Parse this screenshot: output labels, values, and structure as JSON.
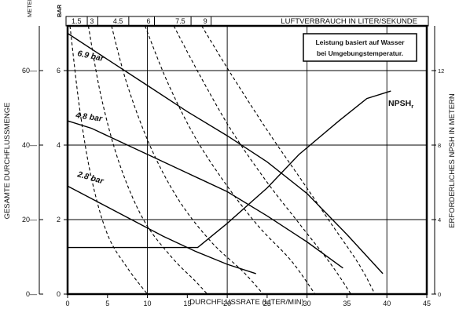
{
  "chart_data": {
    "type": "line",
    "note_lines": [
      "Leistung basiert auf Wasser",
      "bei Umgebungstemperatur."
    ],
    "x_axis": {
      "label": "DURCHFLUSSRATE (LITER/MIN)",
      "range": [
        0,
        45
      ],
      "ticks": [
        "0",
        "5",
        "10",
        "15",
        "20",
        "25",
        "30",
        "35",
        "40",
        "45"
      ]
    },
    "y_axis_left_bar": {
      "unit": "BAR",
      "range": [
        0,
        7.2
      ],
      "ticks": [
        "0",
        "2",
        "4",
        "6"
      ]
    },
    "y_axis_left_meter": {
      "unit": "METER",
      "label": "GESAMTE DURCHFLUSSMENGE",
      "range": [
        0,
        72
      ],
      "ticks": [
        "0",
        "20",
        "40",
        "60"
      ]
    },
    "y_axis_right": {
      "label": "ERFORDERLICHES NPSH IN METERN",
      "range": [
        0,
        14.4
      ],
      "ticks": [
        "0",
        "4",
        "8",
        "12"
      ]
    },
    "top_axis": {
      "label": "LUFTVERBRAUCH IN LITER/SEKUNDE",
      "ticks": [
        {
          "label": "1.5",
          "x": 0.3
        },
        {
          "label": "3",
          "x": 2.6
        },
        {
          "label": "4.5",
          "x": 5.5
        },
        {
          "label": "6",
          "x": 9.7
        },
        {
          "label": "7.5",
          "x": 13.3
        },
        {
          "label": "9",
          "x": 16.8
        }
      ]
    },
    "grid": true,
    "pressure_curves": [
      {
        "label": "6.9 bar",
        "points": [
          [
            0,
            7.0
          ],
          [
            5,
            6.3
          ],
          [
            10,
            5.6
          ],
          [
            15,
            4.9
          ],
          [
            20,
            4.25
          ],
          [
            25,
            3.55
          ],
          [
            30,
            2.7
          ],
          [
            35,
            1.6
          ],
          [
            39.5,
            0.55
          ]
        ]
      },
      {
        "label": "4.8 bar",
        "points": [
          [
            0,
            4.65
          ],
          [
            3,
            4.45
          ],
          [
            6.5,
            4.1
          ],
          [
            10,
            3.75
          ],
          [
            15,
            3.25
          ],
          [
            20,
            2.75
          ],
          [
            25,
            2.1
          ],
          [
            30,
            1.4
          ],
          [
            34.5,
            0.7
          ]
        ]
      },
      {
        "label": "2.8 bar",
        "points": [
          [
            0,
            2.9
          ],
          [
            4,
            2.45
          ],
          [
            8,
            2.0
          ],
          [
            12,
            1.55
          ],
          [
            16,
            1.15
          ],
          [
            20,
            0.8
          ],
          [
            23.6,
            0.55
          ]
        ]
      }
    ],
    "npsh_curve": {
      "label": "NPSH",
      "label_subscript": "r",
      "points": [
        [
          0,
          2.5
        ],
        [
          16.3,
          2.5
        ],
        [
          20,
          3.8
        ],
        [
          25,
          5.7
        ],
        [
          29,
          7.5
        ],
        [
          34,
          9.3
        ],
        [
          37.5,
          10.5
        ],
        [
          40.5,
          10.9
        ]
      ]
    },
    "air_consumption_curves": [
      {
        "label": "1.5",
        "points": [
          [
            0.3,
            7.2
          ],
          [
            1.5,
            5.0
          ],
          [
            3.0,
            3.1
          ],
          [
            5.0,
            1.6
          ],
          [
            7.5,
            0.7
          ],
          [
            10,
            0
          ]
        ]
      },
      {
        "label": "3",
        "points": [
          [
            2.6,
            7.2
          ],
          [
            4.2,
            5.3
          ],
          [
            6.5,
            3.5
          ],
          [
            9.5,
            2.0
          ],
          [
            13,
            1.0
          ],
          [
            16,
            0.35
          ],
          [
            17.5,
            0
          ]
        ]
      },
      {
        "label": "4.5",
        "points": [
          [
            5.5,
            7.2
          ],
          [
            7.5,
            5.6
          ],
          [
            10.5,
            3.9
          ],
          [
            14,
            2.5
          ],
          [
            18,
            1.4
          ],
          [
            22,
            0.6
          ],
          [
            24.5,
            0
          ]
        ]
      },
      {
        "label": "6",
        "points": [
          [
            9.7,
            7.2
          ],
          [
            12.5,
            5.7
          ],
          [
            16,
            4.2
          ],
          [
            20,
            2.9
          ],
          [
            24,
            1.8
          ],
          [
            28,
            0.9
          ],
          [
            31,
            0
          ]
        ]
      },
      {
        "label": "7.5",
        "points": [
          [
            13.3,
            7.2
          ],
          [
            16.5,
            5.9
          ],
          [
            20.5,
            4.4
          ],
          [
            25,
            3.0
          ],
          [
            29,
            1.9
          ],
          [
            33,
            0.8
          ],
          [
            35.5,
            0
          ]
        ]
      },
      {
        "label": "9",
        "points": [
          [
            16.8,
            7.2
          ],
          [
            20.5,
            5.9
          ],
          [
            25,
            4.4
          ],
          [
            29.5,
            3.0
          ],
          [
            33,
            1.9
          ],
          [
            36.5,
            0.8
          ],
          [
            38.5,
            0
          ]
        ]
      }
    ]
  }
}
